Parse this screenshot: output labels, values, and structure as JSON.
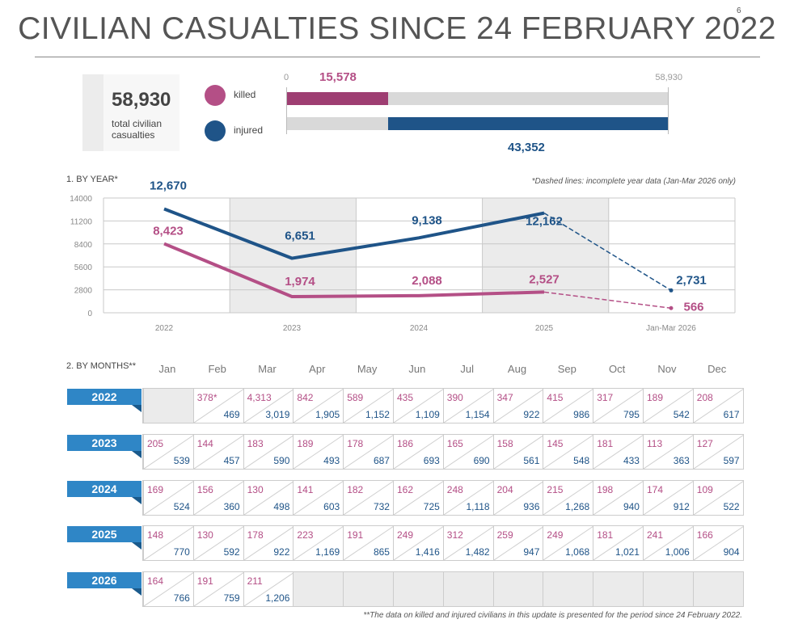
{
  "page": {
    "number": "6",
    "title": "CIVILIAN CASUALTIES SINCE 24 FEBRUARY 2022"
  },
  "summary": {
    "total": "58,930",
    "total_label": "total civilian casualties",
    "killed_label": "killed",
    "injured_label": "injured",
    "killed": "15,578",
    "injured": "43,352",
    "killed_value": 15578,
    "injured_value": 43352,
    "total_value": 58930,
    "scale_min": "0",
    "scale_max": "58,930"
  },
  "colors": {
    "killed": "#b44f86",
    "injured": "#1f5488",
    "grid": "#cccccc",
    "shade": "#ebebeb"
  },
  "chart_data": {
    "type": "line",
    "title": "1. BY YEAR*",
    "note": "*Dashed lines: incomplete year data (Jan-Mar 2026 only)",
    "categories": [
      "2022",
      "2023",
      "2024",
      "2025",
      "Jan-Mar 2026"
    ],
    "ylim": [
      0,
      14000
    ],
    "yticks": [
      0,
      2800,
      5600,
      8400,
      11200,
      14000
    ],
    "series": [
      {
        "name": "injured",
        "values": [
          12670,
          6651,
          9138,
          12162,
          2731
        ],
        "labels": [
          "12,670",
          "6,651",
          "9,138",
          "12,162",
          "2,731"
        ]
      },
      {
        "name": "killed",
        "values": [
          8423,
          1974,
          2088,
          2527,
          566
        ],
        "labels": [
          "8,423",
          "1,974",
          "2,088",
          "2,527",
          "566"
        ]
      }
    ],
    "dashed_last_segment": true
  },
  "months": {
    "title": "2. BY MONTHS**",
    "headers": [
      "Jan",
      "Feb",
      "Mar",
      "Apr",
      "May",
      "Jun",
      "Jul",
      "Aug",
      "Sep",
      "Oct",
      "Nov",
      "Dec"
    ],
    "rows": [
      {
        "year": "2022",
        "cells": [
          null,
          {
            "k": "378*",
            "i": "469"
          },
          {
            "k": "4,313",
            "i": "3,019"
          },
          {
            "k": "842",
            "i": "1,905"
          },
          {
            "k": "589",
            "i": "1,152"
          },
          {
            "k": "435",
            "i": "1,109"
          },
          {
            "k": "390",
            "i": "1,154"
          },
          {
            "k": "347",
            "i": "922"
          },
          {
            "k": "415",
            "i": "986"
          },
          {
            "k": "317",
            "i": "795"
          },
          {
            "k": "189",
            "i": "542"
          },
          {
            "k": "208",
            "i": "617"
          }
        ]
      },
      {
        "year": "2023",
        "cells": [
          {
            "k": "205",
            "i": "539"
          },
          {
            "k": "144",
            "i": "457"
          },
          {
            "k": "183",
            "i": "590"
          },
          {
            "k": "189",
            "i": "493"
          },
          {
            "k": "178",
            "i": "687"
          },
          {
            "k": "186",
            "i": "693"
          },
          {
            "k": "165",
            "i": "690"
          },
          {
            "k": "158",
            "i": "561"
          },
          {
            "k": "145",
            "i": "548"
          },
          {
            "k": "181",
            "i": "433"
          },
          {
            "k": "113",
            "i": "363"
          },
          {
            "k": "127",
            "i": "597"
          }
        ]
      },
      {
        "year": "2024",
        "cells": [
          {
            "k": "169",
            "i": "524"
          },
          {
            "k": "156",
            "i": "360"
          },
          {
            "k": "130",
            "i": "498"
          },
          {
            "k": "141",
            "i": "603"
          },
          {
            "k": "182",
            "i": "732"
          },
          {
            "k": "162",
            "i": "725"
          },
          {
            "k": "248",
            "i": "1,118"
          },
          {
            "k": "204",
            "i": "936"
          },
          {
            "k": "215",
            "i": "1,268"
          },
          {
            "k": "198",
            "i": "940"
          },
          {
            "k": "174",
            "i": "912"
          },
          {
            "k": "109",
            "i": "522"
          }
        ]
      },
      {
        "year": "2025",
        "cells": [
          {
            "k": "148",
            "i": "770"
          },
          {
            "k": "130",
            "i": "592"
          },
          {
            "k": "178",
            "i": "922"
          },
          {
            "k": "223",
            "i": "1,169"
          },
          {
            "k": "191",
            "i": "865"
          },
          {
            "k": "249",
            "i": "1,416"
          },
          {
            "k": "312",
            "i": "1,482"
          },
          {
            "k": "259",
            "i": "947"
          },
          {
            "k": "249",
            "i": "1,068"
          },
          {
            "k": "181",
            "i": "1,021"
          },
          {
            "k": "241",
            "i": "1,006"
          },
          {
            "k": "166",
            "i": "904"
          }
        ]
      },
      {
        "year": "2026",
        "cells": [
          {
            "k": "164",
            "i": "766"
          },
          {
            "k": "191",
            "i": "759"
          },
          {
            "k": "211",
            "i": "1,206"
          },
          null,
          null,
          null,
          null,
          null,
          null,
          null,
          null,
          null
        ]
      }
    ],
    "footnote": "**The data on killed and injured civilians in this update is presented for the period since 24 February 2022."
  }
}
